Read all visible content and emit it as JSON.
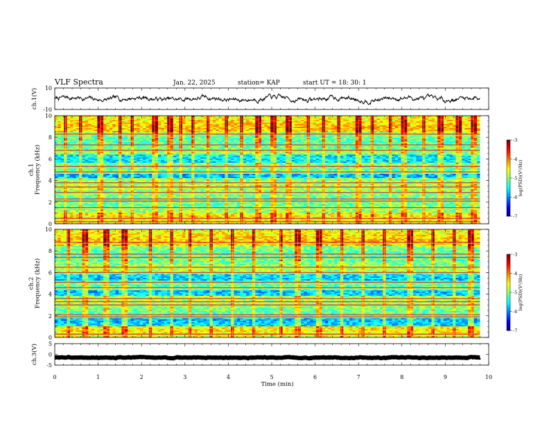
{
  "header": {
    "title": "VLF Spectra",
    "date": "Jan. 22, 2025",
    "station": "station= KAP",
    "start": "start  UT =   18: 30: 1"
  },
  "chart_data": [
    {
      "type": "line",
      "name": "ch1-voltage",
      "ylabel": "ch.1(V)",
      "ylim": [
        -10,
        10
      ],
      "ytick_labels": [
        "10",
        "-10"
      ],
      "xlim": [
        0,
        10
      ],
      "x_end": 9.8,
      "trace": {
        "mean": 0,
        "amplitude": 3.5,
        "color": "#000000",
        "seed": 7
      }
    },
    {
      "type": "heatmap",
      "name": "ch1-spectrogram",
      "ylabel": "ch.1\nFrequency (kHz)",
      "ylim": [
        0,
        10
      ],
      "ytick_labels": [
        "0",
        "2",
        "4",
        "6",
        "8",
        "10"
      ],
      "xlim": [
        0,
        10
      ],
      "x_end": 9.8,
      "value_range": [
        -7,
        -3
      ],
      "colorbar": {
        "label": "log(PSD)(V²/Hz)",
        "tick_labels": [
          "-3",
          "-4",
          "-5",
          "-6",
          "-7"
        ]
      },
      "bands_kHz": [
        0.2,
        0.5,
        1.5,
        2.1,
        2.3,
        2.9,
        3.4,
        3.8,
        4.8,
        5.3,
        6.8,
        7.3,
        8.3
      ],
      "quiet_bands_kHz": [
        [
          5.7,
          6.4
        ],
        [
          4.2,
          4.6
        ]
      ],
      "sferic_times_min": [
        0.25,
        0.6,
        1.05,
        1.5,
        1.8,
        2.3,
        2.65,
        2.9,
        3.2,
        3.55,
        3.95,
        4.3,
        4.7,
        5.05,
        5.4,
        5.85,
        6.2,
        6.55,
        7.0,
        7.3,
        7.75,
        8.05,
        8.5,
        8.9,
        9.3,
        9.65
      ]
    },
    {
      "type": "heatmap",
      "name": "ch2-spectrogram",
      "ylabel": "ch.2\nFrequency (kHz)",
      "ylim": [
        0,
        10
      ],
      "ytick_labels": [
        "0",
        "2",
        "4",
        "6",
        "8",
        "10"
      ],
      "xlim": [
        0,
        10
      ],
      "x_end": 9.8,
      "value_range": [
        -7,
        -3
      ],
      "colorbar": {
        "label": "log(PSD)(V²/Hz)",
        "tick_labels": [
          "-3",
          "-4",
          "-5",
          "-6",
          "-7"
        ]
      },
      "bands_kHz": [
        0.3,
        1.9,
        2.1,
        3.0,
        3.3,
        3.6,
        4.6,
        5.1,
        6.0,
        6.5,
        7.4,
        7.7,
        8.8
      ],
      "quiet_bands_kHz": [
        [
          5.2,
          5.9
        ],
        [
          3.9,
          4.4
        ],
        [
          1.0,
          1.8
        ]
      ],
      "sferic_times_min": [
        0.3,
        0.7,
        1.2,
        1.6,
        2.2,
        2.7,
        3.1,
        3.6,
        4.1,
        4.6,
        5.2,
        5.6,
        6.1,
        6.6,
        7.1,
        7.6,
        8.2,
        8.7,
        9.2,
        9.6
      ]
    },
    {
      "type": "line",
      "name": "ch3-voltage",
      "ylabel": "ch.3(V)",
      "ylim": [
        -5,
        5
      ],
      "ytick_labels": [
        "5",
        "0",
        "-5"
      ],
      "xlim": [
        0,
        10
      ],
      "x_end": 9.8,
      "trace": {
        "mean": -1.5,
        "amplitude": 0.25,
        "color": "#000000",
        "seed": 3
      }
    }
  ],
  "xaxis": {
    "label": "Time (min)",
    "tick_labels": [
      "0",
      "1",
      "2",
      "3",
      "4",
      "5",
      "6",
      "7",
      "8",
      "9",
      "10"
    ]
  }
}
